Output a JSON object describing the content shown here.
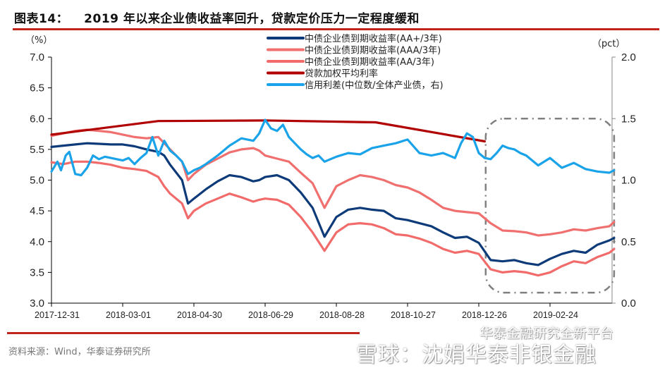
{
  "title": {
    "label": "图表14：",
    "text": "2019 年以来企业债收益率回升，贷款定价压力一定程度缓和"
  },
  "source": "资料来源：Wind，华泰证券研究所",
  "watermark": {
    "line1": "华泰金融研究全新平台",
    "line2": "雪球：沈娟华泰非银金融"
  },
  "chart_data": {
    "type": "line",
    "title": "2019 年以来企业债收益率回升，贷款定价压力一定程度缓和",
    "xlabel": "",
    "ylabel": "(%)",
    "ylabel_right": "(pct)",
    "ylim": [
      3.0,
      7.0
    ],
    "ylim_right": [
      0.0,
      2.0
    ],
    "yticks": [
      "7.0",
      "6.5",
      "6.0",
      "5.5",
      "5.0",
      "4.5",
      "4.0",
      "3.5",
      "3.0"
    ],
    "yticks_right": [
      "2.0",
      "1.5",
      "1.0",
      "0.5",
      "0.0"
    ],
    "xticks": [
      "2017-12-31",
      "2018-03-01",
      "2018-04-30",
      "2018-06-29",
      "2018-08-28",
      "2018-10-27",
      "2018-12-26",
      "2019-02-24"
    ],
    "x_range_days": [
      0,
      474
    ],
    "grid": false,
    "legend_position": "top-center",
    "series": [
      {
        "name": "中债企业债到期收益率(AA+/3年)",
        "color": "#0d3a78",
        "axis": "left",
        "days": [
          0,
          10,
          20,
          30,
          40,
          50,
          60,
          70,
          80,
          90,
          95,
          100,
          110,
          115,
          120,
          130,
          140,
          150,
          160,
          170,
          175,
          180,
          190,
          200,
          210,
          220,
          230,
          240,
          250,
          260,
          270,
          280,
          290,
          300,
          310,
          320,
          330,
          340,
          350,
          360,
          370,
          380,
          390,
          400,
          410,
          420,
          430,
          440,
          450,
          460,
          470,
          474
        ],
        "values": [
          5.54,
          5.56,
          5.58,
          5.6,
          5.59,
          5.58,
          5.58,
          5.55,
          5.5,
          5.46,
          5.4,
          5.25,
          5.0,
          4.62,
          4.7,
          4.85,
          4.98,
          5.08,
          5.05,
          4.98,
          5.0,
          5.05,
          5.08,
          5.0,
          4.8,
          4.55,
          4.08,
          4.4,
          4.52,
          4.55,
          4.52,
          4.5,
          4.38,
          4.35,
          4.3,
          4.25,
          4.15,
          4.06,
          4.08,
          3.98,
          3.7,
          3.68,
          3.7,
          3.65,
          3.62,
          3.72,
          3.8,
          3.85,
          3.82,
          3.95,
          4.02,
          4.06
        ]
      },
      {
        "name": "中债企业债到期收益率(AAA/3年)",
        "color": "#f07070",
        "axis": "left",
        "days": [
          0,
          10,
          20,
          30,
          40,
          50,
          60,
          70,
          80,
          90,
          95,
          100,
          110,
          115,
          120,
          130,
          140,
          150,
          160,
          170,
          175,
          180,
          190,
          200,
          210,
          220,
          230,
          240,
          250,
          260,
          270,
          280,
          290,
          300,
          310,
          320,
          330,
          340,
          350,
          360,
          370,
          380,
          390,
          400,
          410,
          420,
          430,
          440,
          450,
          460,
          470,
          474
        ],
        "values": [
          5.72,
          5.76,
          5.8,
          5.82,
          5.8,
          5.78,
          5.74,
          5.7,
          5.68,
          5.7,
          5.6,
          5.5,
          5.3,
          5.0,
          5.1,
          5.25,
          5.35,
          5.45,
          5.5,
          5.52,
          5.48,
          5.4,
          5.35,
          5.3,
          5.12,
          4.95,
          4.55,
          4.9,
          5.0,
          5.08,
          5.05,
          5.0,
          4.92,
          4.88,
          4.8,
          4.68,
          4.55,
          4.5,
          4.48,
          4.46,
          4.3,
          4.18,
          4.17,
          4.15,
          4.1,
          4.12,
          4.15,
          4.2,
          4.18,
          4.22,
          4.25,
          4.32
        ]
      },
      {
        "name": "中债企业债到期收益率(AA/3年)",
        "color": "#f26b6b",
        "axis": "left",
        "days": [
          0,
          10,
          20,
          30,
          40,
          50,
          60,
          70,
          80,
          90,
          95,
          100,
          110,
          115,
          120,
          130,
          140,
          150,
          160,
          170,
          175,
          180,
          190,
          200,
          210,
          220,
          230,
          240,
          250,
          260,
          270,
          280,
          290,
          300,
          310,
          320,
          330,
          340,
          350,
          360,
          370,
          380,
          390,
          400,
          410,
          420,
          430,
          440,
          450,
          460,
          470,
          474
        ],
        "values": [
          5.29,
          5.26,
          5.3,
          5.3,
          5.28,
          5.25,
          5.2,
          5.18,
          5.15,
          5.05,
          4.9,
          4.78,
          4.62,
          4.38,
          4.5,
          4.62,
          4.7,
          4.78,
          4.72,
          4.65,
          4.68,
          4.7,
          4.68,
          4.6,
          4.4,
          4.15,
          3.85,
          4.15,
          4.28,
          4.3,
          4.28,
          4.22,
          4.12,
          4.1,
          4.05,
          3.98,
          3.88,
          3.82,
          3.85,
          3.8,
          3.55,
          3.5,
          3.52,
          3.5,
          3.45,
          3.5,
          3.6,
          3.68,
          3.65,
          3.75,
          3.82,
          3.88
        ]
      },
      {
        "name": "贷款加权平均利率",
        "color": "#b00000",
        "axis": "left",
        "days": [
          0,
          90,
          181,
          273,
          365
        ],
        "values": [
          5.74,
          5.96,
          5.97,
          5.94,
          5.63
        ]
      },
      {
        "name": "信用利差(中位数/全体产业债，右)",
        "color": "#1aa3e8",
        "axis": "right",
        "days": [
          0,
          5,
          8,
          12,
          15,
          20,
          25,
          30,
          35,
          40,
          45,
          50,
          55,
          60,
          65,
          70,
          75,
          80,
          85,
          90,
          95,
          100,
          105,
          110,
          115,
          120,
          125,
          130,
          140,
          150,
          160,
          170,
          175,
          180,
          185,
          190,
          195,
          200,
          205,
          210,
          215,
          220,
          225,
          230,
          240,
          250,
          260,
          270,
          280,
          290,
          300,
          310,
          320,
          330,
          340,
          345,
          350,
          355,
          360,
          365,
          370,
          375,
          380,
          385,
          390,
          395,
          400,
          410,
          420,
          430,
          440,
          450,
          460,
          470,
          474
        ],
        "values": [
          1.07,
          1.15,
          1.08,
          1.2,
          1.23,
          1.05,
          1.04,
          1.1,
          1.2,
          1.17,
          1.19,
          1.18,
          1.17,
          1.16,
          1.18,
          1.13,
          1.18,
          1.22,
          1.35,
          1.2,
          1.32,
          1.24,
          1.2,
          1.15,
          1.05,
          1.08,
          1.1,
          1.13,
          1.2,
          1.28,
          1.34,
          1.32,
          1.38,
          1.49,
          1.42,
          1.4,
          1.45,
          1.35,
          1.3,
          1.25,
          1.21,
          1.18,
          1.2,
          1.15,
          1.19,
          1.22,
          1.21,
          1.26,
          1.28,
          1.3,
          1.33,
          1.22,
          1.2,
          1.22,
          1.18,
          1.3,
          1.38,
          1.35,
          1.22,
          1.18,
          1.17,
          1.22,
          1.28,
          1.26,
          1.25,
          1.22,
          1.2,
          1.12,
          1.18,
          1.1,
          1.14,
          1.09,
          1.07,
          1.06,
          1.08
        ]
      }
    ],
    "annotations": [
      {
        "type": "dash-dot rounded box",
        "x_days": [
          367,
          474
        ],
        "y": [
          3.17,
          6.0
        ]
      }
    ]
  }
}
